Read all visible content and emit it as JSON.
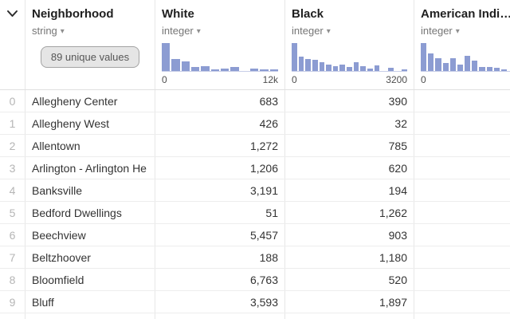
{
  "colors": {
    "histogram_bar": "#8c9cd2",
    "histogram_baseline": "#c7cee8",
    "badge_background": "#e5e5e5",
    "badge_border": "#a3a3a3",
    "row_border": "#ededed",
    "index_text": "#b5b5b5",
    "header_text": "#1f1f1f"
  },
  "table": {
    "columns": [
      {
        "name": "Neighborhood",
        "type": "string",
        "badge": "89 unique values"
      },
      {
        "name": "White",
        "type": "integer",
        "axis_min": "0",
        "axis_max": "12k",
        "hist": [
          1,
          0.42,
          0.34,
          0.13,
          0.16,
          0.07,
          0.09,
          0.13,
          0,
          0.08,
          0.05,
          0.04
        ]
      },
      {
        "name": "Black",
        "type": "integer",
        "axis_min": "0",
        "axis_max": "3200",
        "hist": [
          1,
          0.52,
          0.43,
          0.4,
          0.32,
          0.23,
          0.16,
          0.22,
          0.13,
          0.3,
          0.17,
          0.09,
          0.2,
          0,
          0.12,
          0,
          0.07
        ]
      },
      {
        "name": "American Indi…",
        "type": "integer",
        "axis_min": "0",
        "axis_max": "",
        "hist": [
          1,
          0.62,
          0.45,
          0.28,
          0.46,
          0.22,
          0.55,
          0.36,
          0.13,
          0.13,
          0.11,
          0.06,
          0,
          0.07,
          0.07,
          0.06,
          0,
          0.05
        ]
      }
    ],
    "rows": [
      {
        "index": "0",
        "neighborhood": "Allegheny Center",
        "white": "683",
        "black": "390",
        "american_indian": ""
      },
      {
        "index": "1",
        "neighborhood": "Allegheny West",
        "white": "426",
        "black": "32",
        "american_indian": ""
      },
      {
        "index": "2",
        "neighborhood": "Allentown",
        "white": "1,272",
        "black": "785",
        "american_indian": ""
      },
      {
        "index": "3",
        "neighborhood": "Arlington - Arlington He",
        "white": "1,206",
        "black": "620",
        "american_indian": ""
      },
      {
        "index": "4",
        "neighborhood": "Banksville",
        "white": "3,191",
        "black": "194",
        "american_indian": ""
      },
      {
        "index": "5",
        "neighborhood": "Bedford Dwellings",
        "white": "51",
        "black": "1,262",
        "american_indian": ""
      },
      {
        "index": "6",
        "neighborhood": "Beechview",
        "white": "5,457",
        "black": "903",
        "american_indian": ""
      },
      {
        "index": "7",
        "neighborhood": "Beltzhoover",
        "white": "188",
        "black": "1,180",
        "american_indian": ""
      },
      {
        "index": "8",
        "neighborhood": "Bloomfield",
        "white": "6,763",
        "black": "520",
        "american_indian": ""
      },
      {
        "index": "9",
        "neighborhood": "Bluff",
        "white": "3,593",
        "black": "1,897",
        "american_indian": ""
      }
    ]
  }
}
